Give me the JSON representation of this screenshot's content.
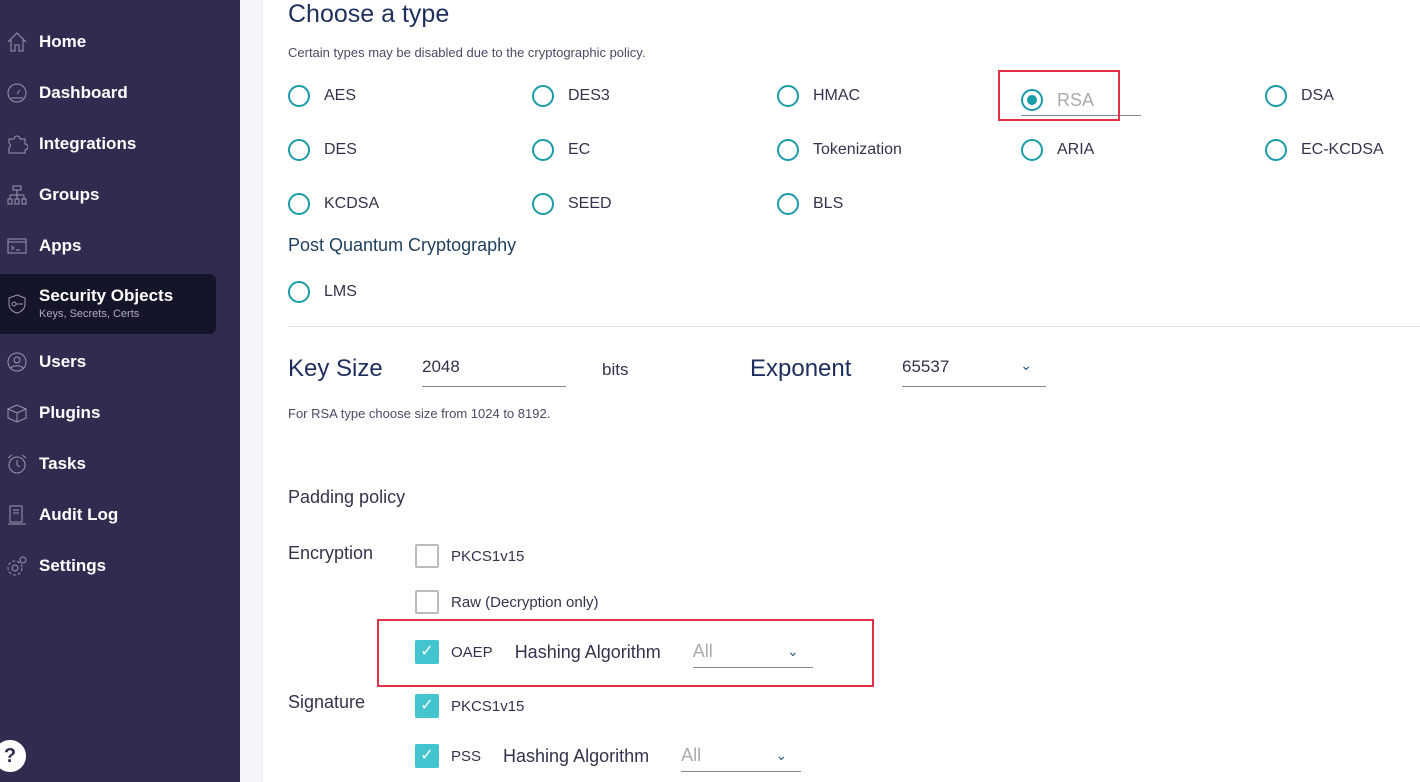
{
  "sidebar": {
    "items": [
      {
        "label": "Home",
        "icon": "home-icon"
      },
      {
        "label": "Dashboard",
        "icon": "dashboard-icon"
      },
      {
        "label": "Integrations",
        "icon": "puzzle-icon"
      },
      {
        "label": "Groups",
        "icon": "hierarchy-icon"
      },
      {
        "label": "Apps",
        "icon": "terminal-icon"
      },
      {
        "label": "Security Objects",
        "sub": "Keys, Secrets, Certs",
        "icon": "shield-key-icon",
        "active": true
      },
      {
        "label": "Users",
        "icon": "user-icon"
      },
      {
        "label": "Plugins",
        "icon": "box-icon"
      },
      {
        "label": "Tasks",
        "icon": "alarm-icon"
      },
      {
        "label": "Audit Log",
        "icon": "audit-icon"
      },
      {
        "label": "Settings",
        "icon": "gear-icon"
      }
    ],
    "help": "?"
  },
  "type": {
    "title": "Choose a type",
    "note": "Certain types may be disabled due to the cryptographic policy.",
    "options": [
      "AES",
      "DES3",
      "HMAC",
      "RSA",
      "DSA",
      "DES",
      "EC",
      "Tokenization",
      "ARIA",
      "EC-KCDSA",
      "KCDSA",
      "SEED",
      "BLS"
    ],
    "selected": "RSA",
    "pqc_title": "Post Quantum Cryptography",
    "pqc_options": [
      "LMS"
    ]
  },
  "keysize": {
    "label": "Key Size",
    "value": "2048",
    "unit": "bits",
    "hint": "For RSA type choose size from 1024 to 8192."
  },
  "exponent": {
    "label": "Exponent",
    "value": "65537"
  },
  "padding": {
    "title": "Padding policy",
    "encryption_label": "Encryption",
    "signature_label": "Signature",
    "encryption": [
      {
        "label": "PKCS1v15",
        "checked": false
      },
      {
        "label": "Raw (Decryption only)",
        "checked": false
      },
      {
        "label": "OAEP",
        "checked": true,
        "hash_label": "Hashing Algorithm",
        "hash_value": "All"
      }
    ],
    "signature": [
      {
        "label": "PKCS1v15",
        "checked": true
      },
      {
        "label": "PSS",
        "checked": true,
        "hash_label": "Hashing Algorithm",
        "hash_value": "All"
      }
    ]
  },
  "colors": {
    "sidebar": "#332a4f",
    "accent": "#1a9ca8",
    "highlight": "#e5304a",
    "checkbox": "#44c4cf"
  }
}
